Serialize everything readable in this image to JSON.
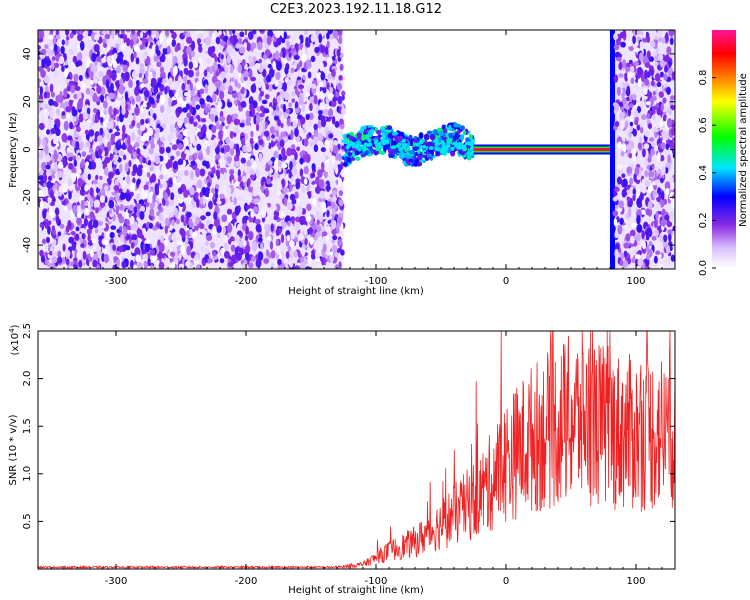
{
  "title": "C2E3.2023.192.11.18.G12",
  "chart_data": [
    {
      "type": "heatmap",
      "name": "spectrogram",
      "xlabel": "Height of straight line (km)",
      "ylabel": "Frequency (Hz)",
      "xlim": [
        -360,
        130
      ],
      "ylim": [
        -50,
        50
      ],
      "xticks": [
        -300,
        -200,
        -100,
        0,
        100
      ],
      "yticks": [
        -40,
        -20,
        0,
        20,
        40
      ],
      "colorbar": {
        "label": "Normalized spectral amplitude",
        "range": [
          0,
          1
        ],
        "ticks": [
          0.0,
          0.2,
          0.4,
          0.6,
          0.8
        ],
        "colormap": [
          "#ffffff",
          "#dcc4ff",
          "#8a2be2",
          "#0000ff",
          "#00e5ff",
          "#00ff00",
          "#ffff00",
          "#ff8000",
          "#ff0000",
          "#ff1493"
        ]
      },
      "regions": [
        {
          "x": [
            -360,
            -125
          ],
          "pattern": "noise",
          "level": 0.08
        },
        {
          "x": [
            -125,
            -25
          ],
          "pattern": "band",
          "center_hz": 2,
          "level": 0.3
        },
        {
          "x": [
            -25,
            80
          ],
          "pattern": "carrier",
          "center_hz": 0,
          "level": 0.95
        },
        {
          "x": [
            80,
            84
          ],
          "pattern": "spike",
          "level": 0.3
        },
        {
          "x": [
            84,
            130
          ],
          "pattern": "noise",
          "level": 0.08
        }
      ]
    },
    {
      "type": "line",
      "name": "snr",
      "xlabel": "Height of straight line (km)",
      "ylabel": "SNR (10 * v/v)",
      "y_multiplier": "(x10",
      "y_multiplier_exp": "4",
      "y_multiplier_close": ")",
      "xlim": [
        -360,
        130
      ],
      "ylim": [
        0,
        2.5
      ],
      "xticks": [
        -300,
        -200,
        -100,
        0,
        100
      ],
      "yticks": [
        0.5,
        1.0,
        1.5,
        2.0,
        2.5
      ],
      "color": "#ee2222",
      "envelope": [
        {
          "x": -360,
          "y": 0.02
        },
        {
          "x": -130,
          "y": 0.02
        },
        {
          "x": -110,
          "y": 0.05
        },
        {
          "x": -90,
          "y": 0.2
        },
        {
          "x": -70,
          "y": 0.3
        },
        {
          "x": -50,
          "y": 0.5
        },
        {
          "x": -30,
          "y": 0.7
        },
        {
          "x": -15,
          "y": 0.9
        },
        {
          "x": 0,
          "y": 1.2
        },
        {
          "x": 20,
          "y": 1.45
        },
        {
          "x": 40,
          "y": 1.6
        },
        {
          "x": 60,
          "y": 1.7
        },
        {
          "x": 80,
          "y": 1.55
        },
        {
          "x": 100,
          "y": 1.5
        },
        {
          "x": 130,
          "y": 1.55
        }
      ]
    }
  ]
}
